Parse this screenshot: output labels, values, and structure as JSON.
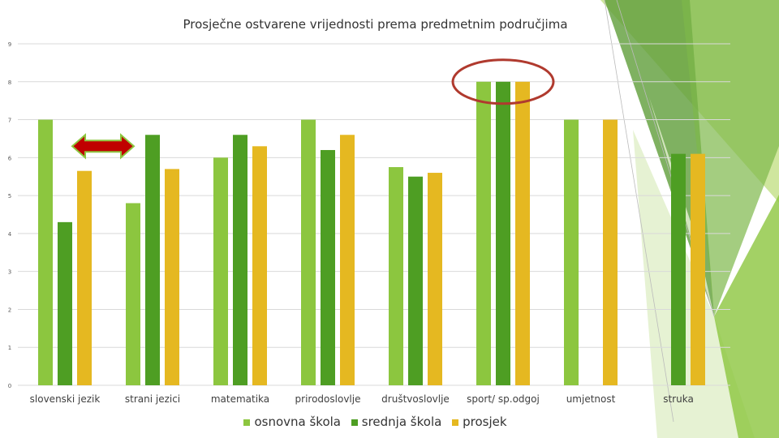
{
  "chart_data": {
    "type": "bar",
    "title": "Prosječne ostvarene vrijednosti prema predmetnim područjima",
    "categories": [
      "slovenski jezik",
      "strani jezici",
      "matematika",
      "prirodoslovlje",
      "društvoslovlje",
      "sport/ sp.odgoj",
      "umjetnost",
      "struka"
    ],
    "series": [
      {
        "name": "osnovna škola",
        "values": [
          7.0,
          4.8,
          6.0,
          7.0,
          5.75,
          8.0,
          7.0,
          null
        ]
      },
      {
        "name": "srednja škola",
        "values": [
          4.3,
          6.6,
          6.6,
          6.2,
          5.5,
          8.0,
          null,
          6.1
        ]
      },
      {
        "name": "prosjek",
        "values": [
          5.65,
          5.7,
          6.3,
          6.6,
          5.6,
          8.0,
          7.0,
          6.1
        ]
      }
    ],
    "ylim": [
      0,
      9
    ],
    "yticks": [
      "0",
      "1",
      "2",
      "3",
      "4",
      "5",
      "6",
      "7",
      "8",
      "9"
    ],
    "grid": true,
    "legend_position": "bottom",
    "annotations": [
      {
        "kind": "double-arrow",
        "category": "slovenski jezik"
      },
      {
        "kind": "ellipse",
        "category": "sport/ sp.odgoj"
      }
    ]
  },
  "colors": {
    "osnovna škola": "#8CC63F",
    "srednja škola": "#4E9E23",
    "prosjek": "#E5B821",
    "arrow_fill": "#C00000",
    "ellipse_stroke": "#B03A2E",
    "grid": "#D9D9D9"
  }
}
